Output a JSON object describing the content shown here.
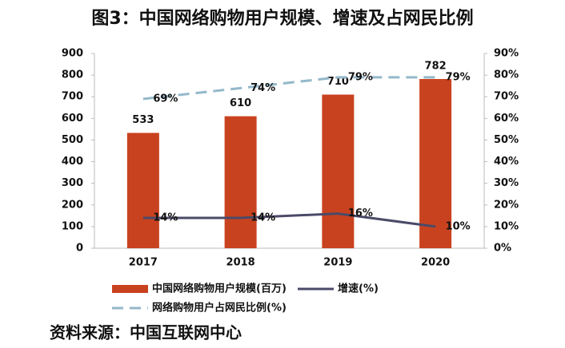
{
  "chart_data": {
    "type": "bar",
    "title": "图3：中国网络购物用户规模、增速及占网民比例",
    "categories": [
      "2017",
      "2018",
      "2019",
      "2020"
    ],
    "series": [
      {
        "name": "中国网络购物用户规模(百万)",
        "type": "bar",
        "color": "#c9421f",
        "values": [
          533,
          610,
          710,
          782
        ]
      },
      {
        "name": "增速(%)",
        "type": "line",
        "axis": "y2",
        "color": "#4b4a68",
        "dashed": false,
        "values": [
          14,
          14,
          16,
          10
        ],
        "value_labels": [
          "14%",
          "14%",
          "16%",
          "10%"
        ]
      },
      {
        "name": "网络购物用户占网民比例(%)",
        "type": "line",
        "axis": "y2",
        "color": "#94b8ca",
        "dashed": true,
        "values": [
          69,
          74,
          79,
          79
        ],
        "value_labels": [
          "69%",
          "74%",
          "79%",
          "79%"
        ]
      }
    ],
    "ylim": [
      0,
      900
    ],
    "yticks": [
      0,
      100,
      200,
      300,
      400,
      500,
      600,
      700,
      800,
      900
    ],
    "y2lim": [
      0,
      90
    ],
    "y2ticks": [
      {
        "value": 0,
        "label": "0%"
      },
      {
        "value": 10,
        "label": "10%"
      },
      {
        "value": 20,
        "label": "20%"
      },
      {
        "value": 30,
        "label": "30%"
      },
      {
        "value": 40,
        "label": "40%"
      },
      {
        "value": 50,
        "label": "50%"
      },
      {
        "value": 60,
        "label": "60%"
      },
      {
        "value": 70,
        "label": "70%"
      },
      {
        "value": 80,
        "label": "80%"
      },
      {
        "value": 90,
        "label": "90%"
      }
    ],
    "grid": false,
    "source": "资料来源：中国互联网中心"
  }
}
